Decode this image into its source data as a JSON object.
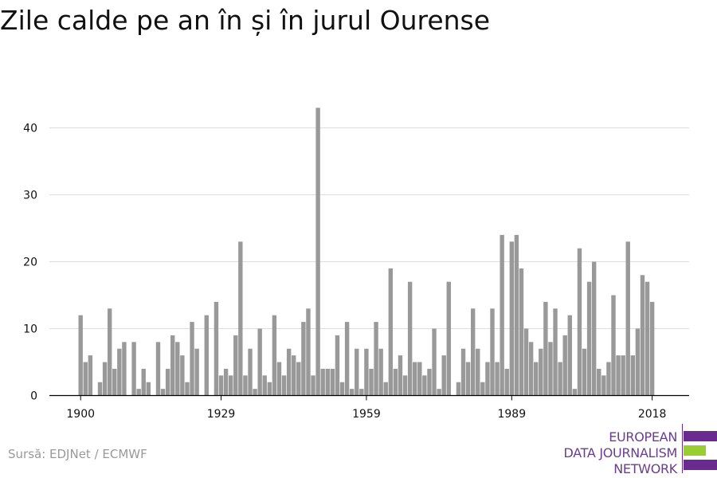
{
  "title": "Zile calde pe an în și în jurul Ourense",
  "source": "Sursă: EDJNet / ECMWF",
  "logo": {
    "lines": [
      "EUROPEAN",
      "DATA JOURNALISM",
      "NETWORK"
    ],
    "colors": {
      "purple": "#6b2a8f",
      "green": "#9acd32",
      "text": "#6b3d8e"
    }
  },
  "colors": {
    "bar": "#999999",
    "grid": "#dddddd",
    "axis": "#000000",
    "text": "#111111",
    "source": "#999999"
  },
  "chart_data": {
    "type": "bar",
    "title": "Zile calde pe an în și în jurul Ourense",
    "xlabel": "",
    "ylabel": "",
    "x_tick_labels": [
      "1900",
      "1929",
      "1959",
      "1989",
      "2018"
    ],
    "y_tick_labels": [
      "0",
      "10",
      "20",
      "30",
      "40"
    ],
    "ylim": [
      0,
      44
    ],
    "grid": true,
    "categories": [
      1900,
      1901,
      1902,
      1903,
      1904,
      1905,
      1906,
      1907,
      1908,
      1909,
      1910,
      1911,
      1912,
      1913,
      1914,
      1915,
      1916,
      1917,
      1918,
      1919,
      1920,
      1921,
      1922,
      1923,
      1924,
      1925,
      1926,
      1927,
      1928,
      1929,
      1930,
      1931,
      1932,
      1933,
      1934,
      1935,
      1936,
      1937,
      1938,
      1939,
      1940,
      1941,
      1942,
      1943,
      1944,
      1945,
      1946,
      1947,
      1948,
      1949,
      1950,
      1951,
      1952,
      1953,
      1954,
      1955,
      1956,
      1957,
      1958,
      1959,
      1960,
      1961,
      1962,
      1963,
      1964,
      1965,
      1966,
      1967,
      1968,
      1969,
      1970,
      1971,
      1972,
      1973,
      1974,
      1975,
      1976,
      1977,
      1978,
      1979,
      1980,
      1981,
      1982,
      1983,
      1984,
      1985,
      1986,
      1987,
      1988,
      1989,
      1990,
      1991,
      1992,
      1993,
      1994,
      1995,
      1996,
      1997,
      1998,
      1999,
      2000,
      2001,
      2002,
      2003,
      2004,
      2005,
      2006,
      2007,
      2008,
      2009,
      2010,
      2011,
      2012,
      2013,
      2014,
      2015,
      2016,
      2017,
      2018
    ],
    "values": [
      12,
      5,
      6,
      0,
      2,
      5,
      13,
      4,
      7,
      8,
      0,
      8,
      1,
      4,
      2,
      0,
      8,
      1,
      4,
      9,
      8,
      6,
      2,
      11,
      7,
      0,
      12,
      0,
      14,
      3,
      4,
      3,
      9,
      23,
      3,
      7,
      1,
      10,
      3,
      2,
      12,
      5,
      3,
      7,
      6,
      5,
      11,
      13,
      3,
      43,
      4,
      4,
      4,
      9,
      2,
      11,
      1,
      7,
      1,
      7,
      4,
      11,
      7,
      2,
      19,
      4,
      6,
      3,
      17,
      5,
      5,
      3,
      4,
      10,
      1,
      6,
      17,
      0,
      2,
      7,
      5,
      13,
      7,
      2,
      5,
      13,
      5,
      24,
      4,
      23,
      24,
      19,
      10,
      8,
      5,
      7,
      14,
      8,
      13,
      5,
      9,
      12,
      1,
      22,
      7,
      17,
      20,
      4,
      3,
      5,
      15,
      6,
      6,
      23,
      6,
      10,
      18,
      17,
      14
    ]
  }
}
